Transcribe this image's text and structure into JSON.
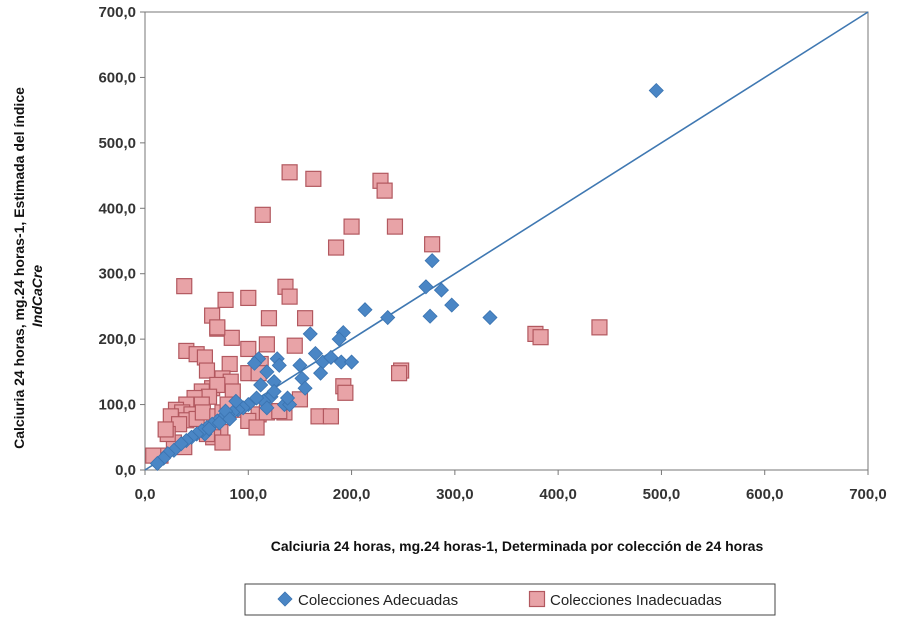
{
  "chart_data": {
    "type": "scatter",
    "xlabel": "Calciuria  24 horas, mg.24 horas-1, Determinada por colección  de 24 horas",
    "ylabel": "Calciuria  24 horas, mg.24 horas-1, Estimada del índice",
    "ylabel_line2": "IndCaCre",
    "xlim": [
      0,
      700
    ],
    "ylim": [
      0,
      700
    ],
    "xticks": [
      "0,0",
      "100,0",
      "200,0",
      "300,0",
      "400,0",
      "500,0",
      "600,0",
      "700,0"
    ],
    "yticks": [
      "0,0",
      "100,0",
      "200,0",
      "300,0",
      "400,0",
      "500,0",
      "600,0",
      "700,0"
    ],
    "xtick_values": [
      0,
      100,
      200,
      300,
      400,
      500,
      600,
      700
    ],
    "ytick_values": [
      0,
      100,
      200,
      300,
      400,
      500,
      600,
      700
    ],
    "identity_line": [
      [
        0,
        0
      ],
      [
        700,
        700
      ]
    ],
    "legend_position": "bottom",
    "series": [
      {
        "name": "Colecciones Adecuadas",
        "marker": "diamond",
        "color": "#4a86c5",
        "points": [
          [
            495,
            580
          ],
          [
            278,
            320
          ],
          [
            272,
            280
          ],
          [
            287,
            275
          ],
          [
            297,
            252
          ],
          [
            276,
            235
          ],
          [
            334,
            233
          ],
          [
            235,
            233
          ],
          [
            213,
            245
          ],
          [
            192,
            210
          ],
          [
            188,
            200
          ],
          [
            160,
            208
          ],
          [
            165,
            178
          ],
          [
            172,
            165
          ],
          [
            180,
            172
          ],
          [
            170,
            148
          ],
          [
            190,
            165
          ],
          [
            200,
            165
          ],
          [
            150,
            160
          ],
          [
            152,
            140
          ],
          [
            155,
            125
          ],
          [
            118,
            150
          ],
          [
            125,
            135
          ],
          [
            112,
            130
          ],
          [
            128,
            170
          ],
          [
            122,
            112
          ],
          [
            115,
            105
          ],
          [
            100,
            100
          ],
          [
            95,
            95
          ],
          [
            90,
            92
          ],
          [
            85,
            88
          ],
          [
            80,
            85
          ],
          [
            75,
            80
          ],
          [
            70,
            75
          ],
          [
            65,
            70
          ],
          [
            60,
            65
          ],
          [
            58,
            55
          ],
          [
            55,
            60
          ],
          [
            50,
            55
          ],
          [
            45,
            50
          ],
          [
            40,
            45
          ],
          [
            35,
            40
          ],
          [
            28,
            30
          ],
          [
            22,
            25
          ],
          [
            18,
            18
          ],
          [
            12,
            10
          ],
          [
            135,
            100
          ],
          [
            108,
            110
          ],
          [
            118,
            95
          ],
          [
            140,
            100
          ],
          [
            88,
            105
          ],
          [
            78,
            90
          ],
          [
            82,
            78
          ],
          [
            72,
            72
          ],
          [
            62,
            63
          ],
          [
            110,
            170
          ],
          [
            106,
            163
          ],
          [
            130,
            160
          ],
          [
            125,
            120
          ],
          [
            138,
            110
          ]
        ]
      },
      {
        "name": "Colecciones Inadecuadas",
        "marker": "square",
        "color": "#e8a3a7",
        "points": [
          [
            140,
            455
          ],
          [
            163,
            445
          ],
          [
            228,
            442
          ],
          [
            232,
            427
          ],
          [
            114,
            390
          ],
          [
            200,
            372
          ],
          [
            242,
            372
          ],
          [
            278,
            345
          ],
          [
            185,
            340
          ],
          [
            38,
            281
          ],
          [
            136,
            280
          ],
          [
            140,
            265
          ],
          [
            100,
            263
          ],
          [
            78,
            260
          ],
          [
            65,
            236
          ],
          [
            120,
            232
          ],
          [
            155,
            232
          ],
          [
            70,
            216
          ],
          [
            84,
            202
          ],
          [
            118,
            192
          ],
          [
            145,
            190
          ],
          [
            40,
            182
          ],
          [
            50,
            177
          ],
          [
            58,
            172
          ],
          [
            100,
            185
          ],
          [
            82,
            162
          ],
          [
            112,
            162
          ],
          [
            60,
            152
          ],
          [
            100,
            148
          ],
          [
            110,
            148
          ],
          [
            75,
            140
          ],
          [
            83,
            135
          ],
          [
            85,
            120
          ],
          [
            65,
            125
          ],
          [
            70,
            130
          ],
          [
            55,
            120
          ],
          [
            62,
            112
          ],
          [
            48,
            110
          ],
          [
            40,
            100
          ],
          [
            55,
            100
          ],
          [
            30,
            92
          ],
          [
            36,
            88
          ],
          [
            45,
            85
          ],
          [
            25,
            82
          ],
          [
            40,
            76
          ],
          [
            33,
            70
          ],
          [
            50,
            78
          ],
          [
            56,
            88
          ],
          [
            70,
            82
          ],
          [
            75,
            88
          ],
          [
            90,
            92
          ],
          [
            80,
            100
          ],
          [
            110,
            85
          ],
          [
            118,
            88
          ],
          [
            100,
            75
          ],
          [
            108,
            65
          ],
          [
            73,
            58
          ],
          [
            66,
            50
          ],
          [
            75,
            42
          ],
          [
            60,
            55
          ],
          [
            38,
            35
          ],
          [
            28,
            42
          ],
          [
            22,
            55
          ],
          [
            20,
            62
          ],
          [
            15,
            22
          ],
          [
            8,
            22
          ],
          [
            378,
            208
          ],
          [
            383,
            203
          ],
          [
            440,
            218
          ],
          [
            248,
            152
          ],
          [
            246,
            148
          ],
          [
            192,
            128
          ],
          [
            194,
            118
          ],
          [
            150,
            108
          ],
          [
            168,
            82
          ],
          [
            180,
            82
          ],
          [
            135,
            88
          ],
          [
            70,
            218
          ],
          [
            130,
            90
          ]
        ]
      }
    ]
  }
}
